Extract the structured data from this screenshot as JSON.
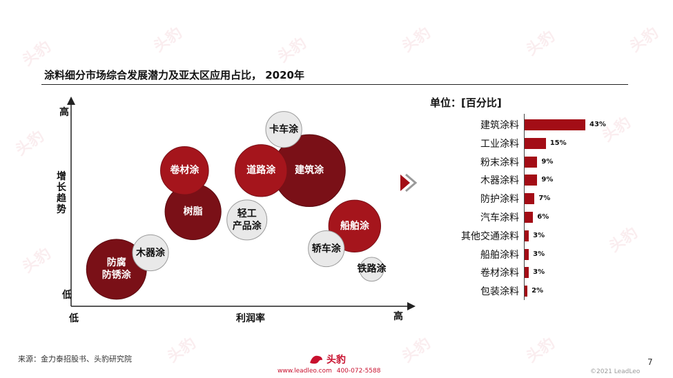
{
  "title": "涂料细分市场综合发展潜力及亚太区应用占比， 2020年",
  "colors": {
    "dark_red": "#7a1017",
    "red": "#a5151c",
    "gray": "#e9e9e9",
    "bar": "#a30d16"
  },
  "chart_data": [
    {
      "type": "scatter",
      "subtype": "bubble",
      "xlabel": "利润率",
      "ylabel": "增长趋势",
      "x_low": "低",
      "x_high": "高",
      "y_low": "低",
      "y_high": "高",
      "bubbles": [
        {
          "label": "卡车涂",
          "label2": "",
          "x": 7.5,
          "y": 8.6,
          "size": 0.9,
          "color": "gray"
        },
        {
          "label": "卷材涂",
          "label2": "",
          "x": 4.0,
          "y": 6.6,
          "size": 1.2,
          "color": "red"
        },
        {
          "label": "道路涂",
          "label2": "",
          "x": 6.7,
          "y": 6.6,
          "size": 1.3,
          "color": "red"
        },
        {
          "label": "建筑涂",
          "label2": "",
          "x": 8.4,
          "y": 6.6,
          "size": 1.8,
          "color": "dark_red"
        },
        {
          "label": "树脂",
          "label2": "",
          "x": 4.3,
          "y": 4.6,
          "size": 1.4,
          "color": "dark_red"
        },
        {
          "label": "轻工",
          "label2": "产品涂",
          "x": 6.2,
          "y": 4.2,
          "size": 1.0,
          "color": "gray"
        },
        {
          "label": "船舶涂",
          "label2": "",
          "x": 10.0,
          "y": 3.9,
          "size": 1.3,
          "color": "red"
        },
        {
          "label": "轿车涂",
          "label2": "",
          "x": 9.0,
          "y": 2.8,
          "size": 0.9,
          "color": "gray"
        },
        {
          "label": "铁路涂",
          "label2": "",
          "x": 10.6,
          "y": 1.8,
          "size": 0.6,
          "color": "gray"
        },
        {
          "label": "木器涂",
          "label2": "",
          "x": 2.8,
          "y": 2.6,
          "size": 0.9,
          "color": "gray"
        },
        {
          "label": "防腐",
          "label2": "防锈涂",
          "x": 1.6,
          "y": 1.8,
          "size": 1.5,
          "color": "dark_red"
        }
      ]
    },
    {
      "type": "bar",
      "orientation": "horizontal",
      "unit": "单位：[百分比]",
      "categories": [
        "建筑涂料",
        "工业涂料",
        "粉末涂料",
        "木器涂料",
        "防护涂料",
        "汽车涂料",
        "其他交通涂料",
        "船舶涂料",
        "卷材涂料",
        "包装涂料"
      ],
      "values": [
        43,
        15,
        9,
        9,
        7,
        6,
        3,
        3,
        3,
        2
      ],
      "value_labels": [
        "43%",
        "15%",
        "9%",
        "9%",
        "7%",
        "6%",
        "3%",
        "3%",
        "3%",
        "2%"
      ],
      "xlim": [
        0,
        50
      ]
    }
  ],
  "footer": {
    "source": "来源：金力泰招股书、头豹研究院",
    "logo_text": "头豹",
    "website": "www.leadleo.com",
    "phone": "400-072-5588",
    "copyright": "©2021 LeadLeo",
    "page": "7"
  }
}
